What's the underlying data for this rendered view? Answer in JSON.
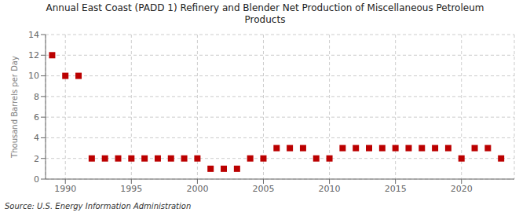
{
  "chart_data": {
    "type": "scatter",
    "title": "Annual East Coast (PADD 1) Refinery and Blender Net Production of Miscellaneous Petroleum\nProducts",
    "ylabel": "Thousand Barrels per Day",
    "annotation": "Source: U.S. Energy Information Administration",
    "x": [
      1989,
      1990,
      1991,
      1992,
      1993,
      1994,
      1995,
      1996,
      1997,
      1998,
      1999,
      2000,
      2001,
      2002,
      2003,
      2004,
      2005,
      2006,
      2007,
      2008,
      2009,
      2010,
      2011,
      2012,
      2013,
      2014,
      2015,
      2016,
      2017,
      2018,
      2019,
      2020,
      2021,
      2022,
      2023
    ],
    "values": [
      12,
      10,
      10,
      2,
      2,
      2,
      2,
      2,
      2,
      2,
      2,
      2,
      1,
      1,
      1,
      2,
      2,
      3,
      3,
      3,
      2,
      2,
      3,
      3,
      3,
      3,
      3,
      3,
      3,
      3,
      3,
      2,
      3,
      3,
      2
    ],
    "color": "#bb0000",
    "marker": "square",
    "xlim": [
      1988.5,
      2024
    ],
    "ylim": [
      0,
      14
    ],
    "xticks": [
      1990,
      1995,
      2000,
      2005,
      2010,
      2015,
      2020
    ],
    "yticks": [
      0,
      2,
      4,
      6,
      8,
      10,
      12,
      14
    ],
    "grid": true
  }
}
